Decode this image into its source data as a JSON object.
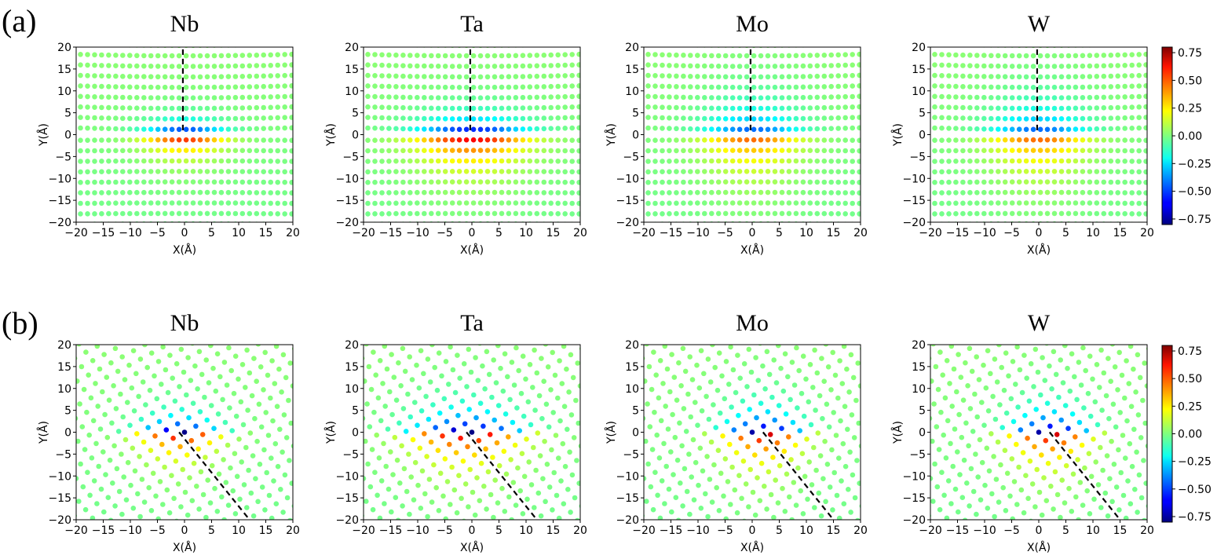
{
  "panel_labels": [
    "(a)",
    "(b)"
  ],
  "chart_data": [
    {
      "type": "scatter",
      "row": "a",
      "title": "Nb",
      "xlabel": "X(Å)",
      "ylabel": "Y(Å)",
      "xlim": [
        -20,
        20
      ],
      "ylim": [
        -20,
        20
      ],
      "xticks": [
        -20,
        -15,
        -10,
        -5,
        0,
        5,
        10,
        15,
        20
      ],
      "yticks": [
        -20,
        -15,
        -10,
        -5,
        0,
        5,
        10,
        15,
        20
      ],
      "lattice": "horizontal_rows",
      "row_spacing": 2.4,
      "lattice_spacing": 1.3,
      "dislocation_line": {
        "from": [
          -0.3,
          1
        ],
        "to": [
          -0.3,
          20
        ]
      },
      "field": {
        "amplitude": 0.8,
        "x_width": 5,
        "y_decay_top": 2.2,
        "y_decay_bottom": 3
      }
    },
    {
      "type": "scatter",
      "row": "a",
      "title": "Ta",
      "xlabel": "X(Å)",
      "ylabel": "Y(Å)",
      "xlim": [
        -20,
        20
      ],
      "ylim": [
        -20,
        20
      ],
      "xticks": [
        -20,
        -15,
        -10,
        -5,
        0,
        5,
        10,
        15,
        20
      ],
      "yticks": [
        -20,
        -15,
        -10,
        -5,
        0,
        5,
        10,
        15,
        20
      ],
      "lattice": "horizontal_rows",
      "row_spacing": 2.4,
      "lattice_spacing": 1.3,
      "dislocation_line": {
        "from": [
          -0.3,
          1
        ],
        "to": [
          -0.3,
          20
        ]
      },
      "field": {
        "amplitude": 0.8,
        "x_width": 7,
        "y_decay_top": 3,
        "y_decay_bottom": 5
      }
    },
    {
      "type": "scatter",
      "row": "a",
      "title": "Mo",
      "xlabel": "X(Å)",
      "ylabel": "Y(Å)",
      "xlim": [
        -20,
        20
      ],
      "ylim": [
        -20,
        20
      ],
      "xticks": [
        -20,
        -15,
        -10,
        -5,
        0,
        5,
        10,
        15,
        20
      ],
      "yticks": [
        -20,
        -15,
        -10,
        -5,
        0,
        5,
        10,
        15,
        20
      ],
      "lattice": "horizontal_rows",
      "row_spacing": 2.4,
      "lattice_spacing": 1.3,
      "dislocation_line": {
        "from": [
          -0.3,
          1
        ],
        "to": [
          -0.3,
          20
        ]
      },
      "field": {
        "amplitude": 0.55,
        "x_width": 6,
        "y_decay_top": 5,
        "y_decay_bottom": 6
      }
    },
    {
      "type": "scatter",
      "row": "a",
      "title": "W",
      "xlabel": "X(Å)",
      "ylabel": "Y(Å)",
      "xlim": [
        -20,
        20
      ],
      "ylim": [
        -20,
        20
      ],
      "xticks": [
        -20,
        -15,
        -10,
        -5,
        0,
        5,
        10,
        15,
        20
      ],
      "yticks": [
        -20,
        -15,
        -10,
        -5,
        0,
        5,
        10,
        15,
        20
      ],
      "lattice": "horizontal_rows",
      "row_spacing": 2.4,
      "lattice_spacing": 1.3,
      "dislocation_line": {
        "from": [
          -0.3,
          1
        ],
        "to": [
          -0.3,
          20
        ]
      },
      "field": {
        "amplitude": 0.55,
        "x_width": 6,
        "y_decay_top": 5,
        "y_decay_bottom": 6
      }
    },
    {
      "type": "scatter",
      "row": "b",
      "title": "Nb",
      "xlabel": "X(Å)",
      "ylabel": "Y(Å)",
      "xlim": [
        -20,
        20
      ],
      "ylim": [
        -20,
        20
      ],
      "xticks": [
        -20,
        -15,
        -10,
        -5,
        0,
        5,
        10,
        15,
        20
      ],
      "yticks": [
        -20,
        -15,
        -10,
        -5,
        0,
        5,
        10,
        15,
        20
      ],
      "lattice": "diagonal_rows",
      "row_spacing": 2.5,
      "lattice_spacing": 2.3,
      "dislocation_line": {
        "from": [
          -1,
          0
        ],
        "to": [
          12,
          -20
        ]
      },
      "field": {
        "amplitude": 0.8,
        "core": [
          -1,
          0
        ],
        "x_width": 5,
        "y_decay_top": 3,
        "y_decay_bottom": 4
      }
    },
    {
      "type": "scatter",
      "row": "b",
      "title": "Ta",
      "xlabel": "X(Å)",
      "ylabel": "Y(Å)",
      "xlim": [
        -20,
        20
      ],
      "ylim": [
        -20,
        20
      ],
      "xticks": [
        -20,
        -15,
        -10,
        -5,
        0,
        5,
        10,
        15,
        20
      ],
      "yticks": [
        -20,
        -15,
        -10,
        -5,
        0,
        5,
        10,
        15,
        20
      ],
      "lattice": "diagonal_rows",
      "row_spacing": 2.5,
      "lattice_spacing": 2.3,
      "dislocation_line": {
        "from": [
          -1,
          0
        ],
        "to": [
          12,
          -20
        ]
      },
      "field": {
        "amplitude": 0.8,
        "core": [
          -1,
          0
        ],
        "x_width": 7,
        "y_decay_top": 4,
        "y_decay_bottom": 5
      }
    },
    {
      "type": "scatter",
      "row": "b",
      "title": "Mo",
      "xlabel": "X(Å)",
      "ylabel": "Y(Å)",
      "xlim": [
        -20,
        20
      ],
      "ylim": [
        -20,
        20
      ],
      "xticks": [
        -20,
        -15,
        -10,
        -5,
        0,
        5,
        10,
        15,
        20
      ],
      "yticks": [
        -20,
        -15,
        -10,
        -5,
        0,
        5,
        10,
        15,
        20
      ],
      "lattice": "diagonal_rows",
      "row_spacing": 2.5,
      "lattice_spacing": 2.3,
      "dislocation_line": {
        "from": [
          2,
          0
        ],
        "to": [
          15,
          -20
        ]
      },
      "field": {
        "amplitude": 0.8,
        "core": [
          2,
          0
        ],
        "x_width": 5,
        "y_decay_top": 4,
        "y_decay_bottom": 5
      }
    },
    {
      "type": "scatter",
      "row": "b",
      "title": "W",
      "xlabel": "X(Å)",
      "ylabel": "Y(Å)",
      "xlim": [
        -20,
        20
      ],
      "ylim": [
        -20,
        20
      ],
      "xticks": [
        -20,
        -15,
        -10,
        -5,
        0,
        5,
        10,
        15,
        20
      ],
      "yticks": [
        -20,
        -15,
        -10,
        -5,
        0,
        5,
        10,
        15,
        20
      ],
      "lattice": "diagonal_rows",
      "row_spacing": 2.5,
      "lattice_spacing": 2.3,
      "dislocation_line": {
        "from": [
          2,
          0
        ],
        "to": [
          15,
          -20
        ]
      },
      "field": {
        "amplitude": 0.8,
        "core": [
          2,
          0
        ],
        "x_width": 5,
        "y_decay_top": 4,
        "y_decay_bottom": 5
      }
    }
  ],
  "colorbar": {
    "colormap": "jet",
    "range": [
      -0.8,
      0.8
    ],
    "ticks": [
      "0.75",
      "0.50",
      "0.25",
      "0.00",
      "−0.25",
      "−0.50",
      "−0.75"
    ],
    "tick_values": [
      0.75,
      0.5,
      0.25,
      0,
      -0.25,
      -0.5,
      -0.75
    ]
  }
}
